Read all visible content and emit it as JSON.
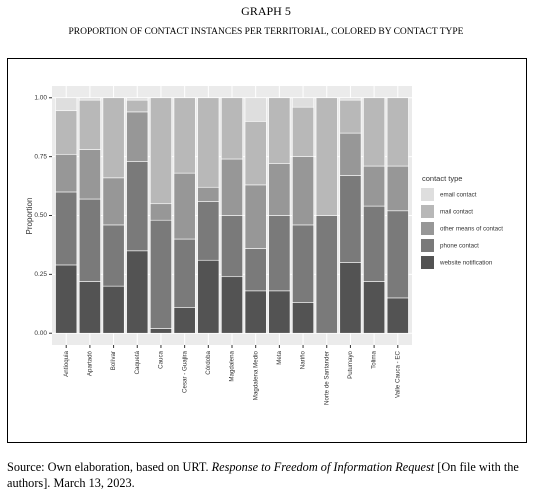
{
  "header": {
    "label": "GRAPH 5",
    "title": "PROPORTION OF CONTACT INSTANCES PER TERRITORIAL, COLORED BY CONTACT TYPE"
  },
  "chart_data": {
    "type": "stacked-bar",
    "categories": [
      "Antioquia",
      "Apartadó",
      "Bolívar",
      "Caquetá",
      "Cauca",
      "Cesar - Guajira",
      "Córdoba",
      "Magdalena",
      "Magdalena Medio",
      "Meta",
      "Nariño",
      "Norte de Santander",
      "Putumayo",
      "Tolima",
      "Valle Cauca - EC"
    ],
    "y_label": "Proportion",
    "legend_title": "contact type",
    "series": [
      {
        "name": "email contact",
        "color": "#dedede",
        "values": [
          0.055,
          0.01,
          0,
          0.01,
          0,
          0,
          0,
          0,
          0.1,
          0,
          0.04,
          0,
          0.01,
          0,
          0
        ]
      },
      {
        "name": "mail contact",
        "color": "#b8b8b8",
        "values": [
          0.185,
          0.21,
          0.34,
          0.05,
          0.45,
          0.32,
          0.38,
          0.26,
          0.27,
          0.28,
          0.21,
          0.5,
          0.14,
          0.29,
          0.29
        ]
      },
      {
        "name": "other means of contact",
        "color": "#979797",
        "values": [
          0.16,
          0.21,
          0.2,
          0.21,
          0.07,
          0.28,
          0.06,
          0.24,
          0.27,
          0.22,
          0.29,
          0,
          0.18,
          0.17,
          0.19
        ]
      },
      {
        "name": "phone contact",
        "color": "#7a7a7a",
        "values": [
          0.31,
          0.35,
          0.26,
          0.38,
          0.46,
          0.29,
          0.25,
          0.26,
          0.18,
          0.32,
          0.33,
          0.5,
          0.37,
          0.32,
          0.37
        ]
      },
      {
        "name": "website notification",
        "color": "#535353",
        "values": [
          0.29,
          0.22,
          0.2,
          0.35,
          0.02,
          0.11,
          0.31,
          0.24,
          0.18,
          0.18,
          0.13,
          0,
          0.3,
          0.22,
          0.15
        ]
      }
    ],
    "ylim": [
      -0.05,
      1.05
    ],
    "yticks": [
      {
        "value": 0,
        "label": "0.00"
      },
      {
        "value": 0.25,
        "label": "0.25"
      },
      {
        "value": 0.5,
        "label": "0.50"
      },
      {
        "value": 0.75,
        "label": "0.75"
      },
      {
        "value": 1,
        "label": "1.00"
      }
    ],
    "grid": true
  },
  "source": {
    "prefix": "Source: Own elaboration, based on URT. ",
    "italic": "Response to Freedom of Information Request",
    "suffix": " [On file with the authors]. March 13, 2023."
  }
}
